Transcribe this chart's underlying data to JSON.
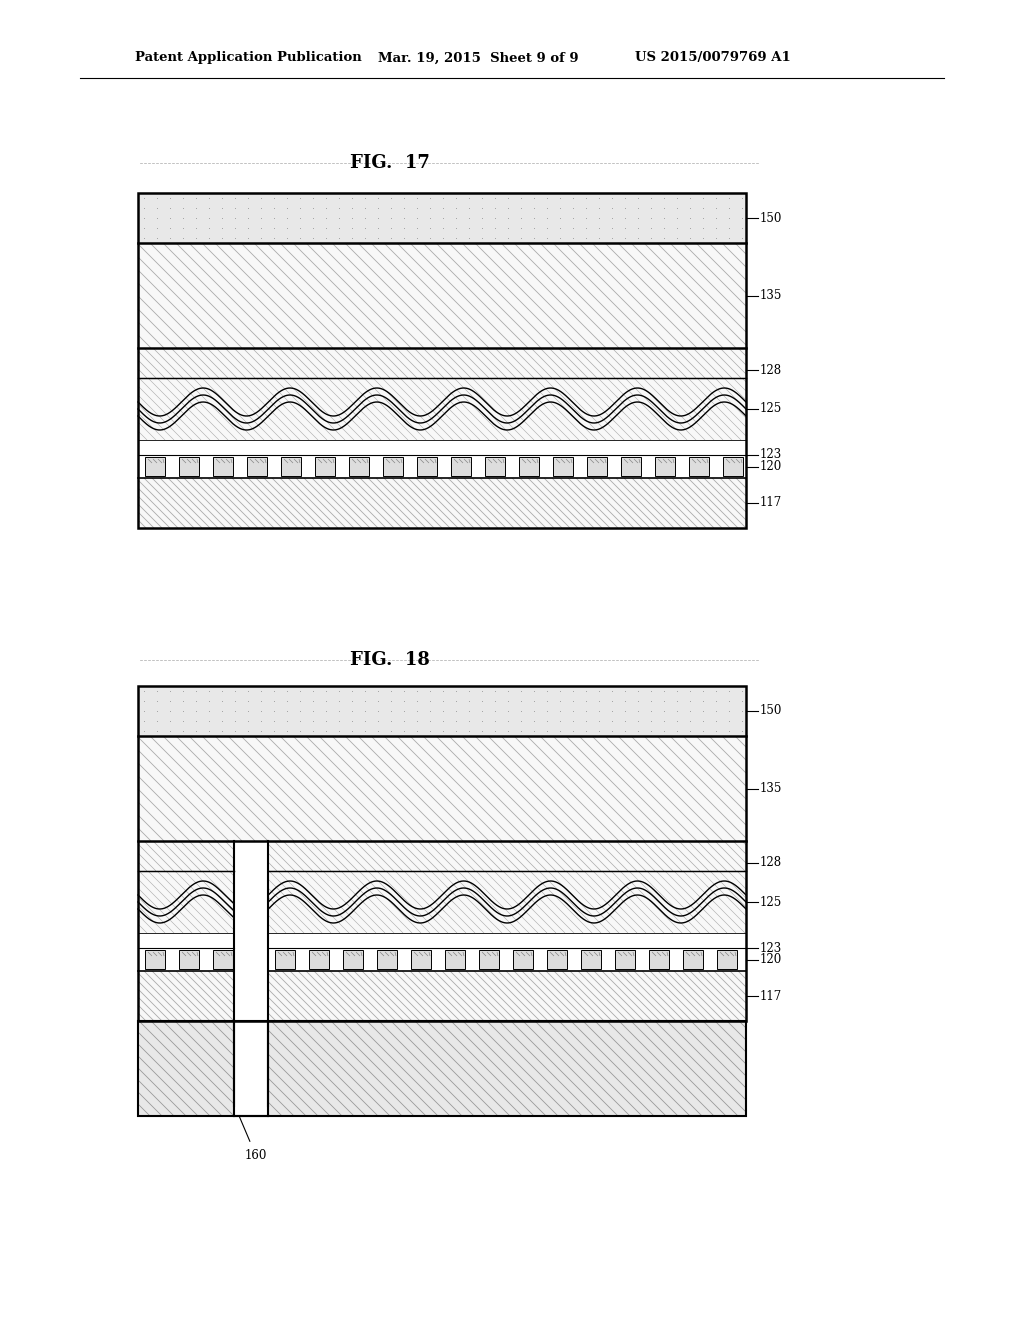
{
  "bg_color": "#ffffff",
  "header_left": "Patent Application Publication",
  "header_mid": "Mar. 19, 2015  Sheet 9 of 9",
  "header_right": "US 2015/0079769 A1",
  "fig17_label": "FIG.  17",
  "fig18_label": "FIG.  18",
  "black": "#000000",
  "white": "#ffffff",
  "dot_face": "#e8e8e8",
  "dot_color": "#999999",
  "hatch_face": "#f8f8f8",
  "hatch_color": "#aaaaaa",
  "block_face": "#dddddd",
  "sub_face": "#eeeeee",
  "sub_hatch": "#aaaaaa"
}
